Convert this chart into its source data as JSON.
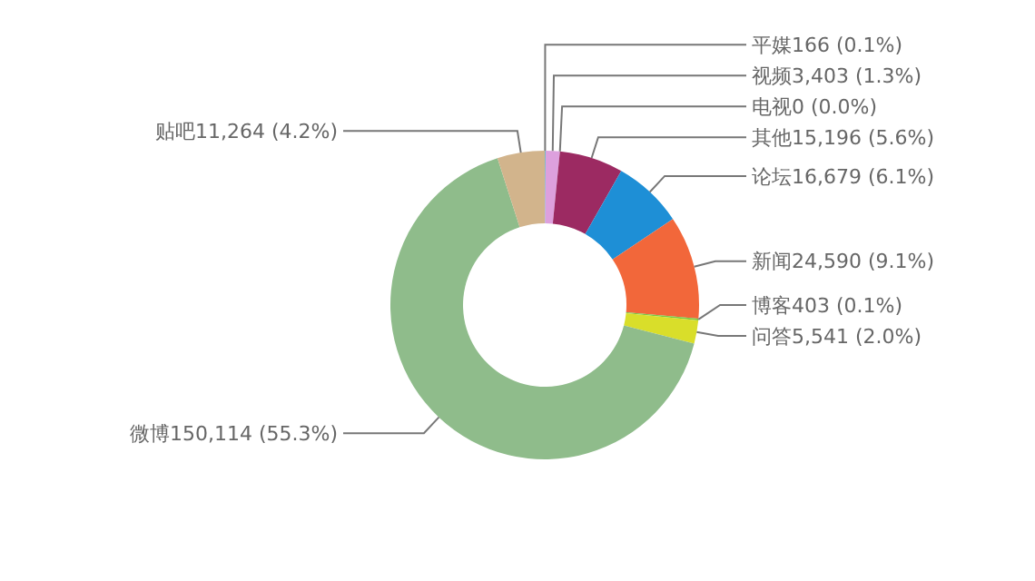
{
  "chart_data": {
    "type": "donut",
    "categories": [
      "平媒",
      "视频",
      "电视",
      "其他",
      "论坛",
      "新闻",
      "博客",
      "问答",
      "微博",
      "贴吧"
    ],
    "values": [
      166,
      3403,
      0,
      15196,
      16679,
      24590,
      403,
      5541,
      150114,
      11264
    ],
    "value_labels": [
      "166 (0.1%)",
      "3,403 (1.3%)",
      "0 (0.0%)",
      "15,196 (5.6%)",
      "16,679 (6.1%)",
      "24,590 (9.1%)",
      "403 (0.1%)",
      "5,541 (2.0%)",
      "150,114 (55.3%)",
      "11,264 (4.2%)"
    ],
    "colors": [
      "#20b2aa",
      "#dda0dd",
      "#b0c4de",
      "#9c2a62",
      "#1e8fd6",
      "#f2673a",
      "#7ac943",
      "#d9de2a",
      "#8fbc8b",
      "#d2b48c"
    ]
  }
}
